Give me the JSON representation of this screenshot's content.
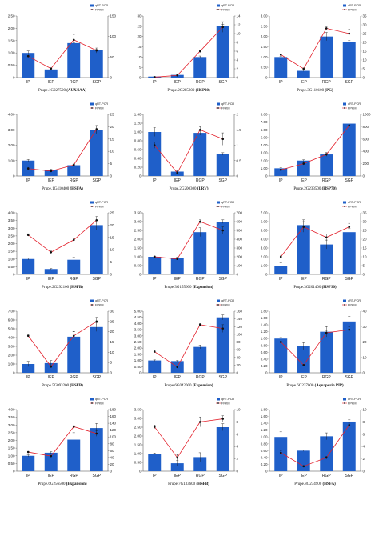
{
  "legend": {
    "bar_label": "qRT-PCR",
    "line_label": "FPKM"
  },
  "colors": {
    "bar": "#1f5fc9",
    "line": "#e3202b",
    "marker": "#111111",
    "axis": "#444444"
  },
  "chart_data": [
    {
      "type": "bar",
      "gene": "Prupe.1G027500",
      "product": "(AUX/IAA)",
      "categories": [
        "IP",
        "IEP",
        "RGP",
        "SGP"
      ],
      "bar_values": [
        1.0,
        0.33,
        1.4,
        1.12
      ],
      "bar_err": [
        0.08,
        0.03,
        0.02,
        0.03
      ],
      "line_values": [
        52,
        22,
        92,
        66
      ],
      "line_err": [
        2,
        1,
        13,
        6
      ],
      "left_ticks": [
        "0",
        "0.50",
        "1.00",
        "1.50",
        "2.00",
        "2.50"
      ],
      "left_max": 2.5,
      "right_ticks": [
        "0",
        "50",
        "100",
        "150"
      ],
      "right_max": 150
    },
    {
      "type": "bar",
      "gene": "Prupe.2G285800",
      "product": "(HSP20)",
      "categories": [
        "IP",
        "IEP",
        "RGP",
        "SGP"
      ],
      "bar_values": [
        0.5,
        1.3,
        10.0,
        25.0
      ],
      "bar_err": [
        0.05,
        0.1,
        0.5,
        1.0
      ],
      "line_values": [
        0.1,
        0.5,
        6.0,
        11.5
      ],
      "line_err": [
        0.05,
        0.05,
        0.3,
        1.2
      ],
      "left_ticks": [
        "0",
        "5",
        "10",
        "15",
        "20",
        "25",
        "30"
      ],
      "left_max": 30,
      "right_ticks": [
        "0",
        "2",
        "4",
        "6",
        "8",
        "10",
        "12",
        "14"
      ],
      "right_max": 14
    },
    {
      "type": "bar",
      "gene": "Prupe.3G110100",
      "product": "(PG)",
      "categories": [
        "IP",
        "IEP",
        "RGP",
        "SGP"
      ],
      "bar_values": [
        1.0,
        0.33,
        2.0,
        1.75
      ],
      "bar_err": [
        0.03,
        0.03,
        0.2,
        0.05
      ],
      "line_values": [
        13,
        5,
        28,
        25
      ],
      "line_err": [
        0.5,
        0.5,
        0.8,
        2.5
      ],
      "left_ticks": [
        "0",
        "0.50",
        "1.00",
        "1.50",
        "2.00",
        "2.50",
        "3.00"
      ],
      "left_max": 3.0,
      "right_ticks": [
        "0",
        "5",
        "10",
        "15",
        "20",
        "25",
        "30",
        "35"
      ],
      "right_max": 35
    },
    {
      "type": "bar",
      "gene": "Prupe.1G410400",
      "product": "(HSFA)",
      "categories": [
        "IP",
        "IEP",
        "RGP",
        "SGP"
      ],
      "bar_values": [
        1.0,
        0.4,
        0.7,
        3.0
      ],
      "bar_err": [
        0.07,
        0.04,
        0.05,
        0.25
      ],
      "line_values": [
        3.0,
        2.0,
        4.5,
        19.0
      ],
      "line_err": [
        0.5,
        0.3,
        0.4,
        1.5
      ],
      "left_ticks": [
        "0",
        "1.00",
        "2.00",
        "3.00",
        "4.00"
      ],
      "left_max": 4.0,
      "right_ticks": [
        "0",
        "5",
        "10",
        "15",
        "20",
        "25"
      ],
      "right_max": 25
    },
    {
      "type": "bar",
      "gene": "Prupe.2G200300",
      "product": "(LRV)",
      "categories": [
        "IP",
        "IEP",
        "RGP",
        "SGP"
      ],
      "bar_values": [
        1.0,
        0.1,
        0.98,
        0.5
      ],
      "bar_err": [
        0.1,
        0.02,
        0.05,
        0.03
      ],
      "line_values": [
        1.0,
        0.1,
        1.5,
        1.2
      ],
      "line_err": [
        0.1,
        0.05,
        0.1,
        0.2
      ],
      "left_ticks": [
        "0",
        "0.20",
        "0.40",
        "0.60",
        "0.80",
        "1.00",
        "1.20",
        "1.40"
      ],
      "left_max": 1.4,
      "right_ticks": [
        "0",
        "0.5",
        "1",
        "1.5",
        "2"
      ],
      "right_max": 2.0
    },
    {
      "type": "bar",
      "gene": "Prupe.2G233500",
      "product": "(HSP70)",
      "categories": [
        "IP",
        "IEP",
        "RGP",
        "SGP"
      ],
      "bar_values": [
        1.0,
        2.0,
        2.8,
        6.8
      ],
      "bar_err": [
        0.1,
        0.1,
        0.15,
        0.2
      ],
      "line_values": [
        100,
        200,
        350,
        820
      ],
      "line_err": [
        10,
        20,
        30,
        60
      ],
      "left_ticks": [
        "0",
        "1.00",
        "2.00",
        "3.00",
        "4.00",
        "5.00",
        "6.00",
        "7.00",
        "8.00"
      ],
      "left_max": 8.0,
      "right_ticks": [
        "0",
        "200",
        "400",
        "600",
        "800",
        "1000"
      ],
      "right_max": 1000
    },
    {
      "type": "bar",
      "gene": "Prupe.2G292100",
      "product": "(HSFB)",
      "categories": [
        "IP",
        "IEP",
        "RGP",
        "SGP"
      ],
      "bar_values": [
        1.0,
        0.35,
        0.95,
        3.2
      ],
      "bar_err": [
        0.05,
        0.03,
        0.15,
        0.3
      ],
      "line_values": [
        16,
        9,
        14,
        22
      ],
      "line_err": [
        0.5,
        0.5,
        0.5,
        1.5
      ],
      "left_ticks": [
        "0",
        "0.50",
        "1.00",
        "1.50",
        "2.00",
        "2.50",
        "3.00",
        "3.50",
        "4.00"
      ],
      "left_max": 4.0,
      "right_ticks": [
        "0",
        "5",
        "10",
        "15",
        "20",
        "25"
      ],
      "right_max": 25
    },
    {
      "type": "bar",
      "gene": "Prupe.3G155600",
      "product": "(Expansion)",
      "categories": [
        "IP",
        "IEP",
        "RGP",
        "SGP"
      ],
      "bar_values": [
        1.0,
        0.95,
        2.4,
        3.0
      ],
      "bar_err": [
        0.03,
        0.03,
        0.25,
        0.1
      ],
      "line_values": [
        200,
        175,
        600,
        500
      ],
      "line_err": [
        10,
        10,
        20,
        40
      ],
      "left_ticks": [
        "0",
        "0.50",
        "1.00",
        "1.50",
        "2.00",
        "2.50",
        "3.00",
        "3.50"
      ],
      "left_max": 3.5,
      "right_ticks": [
        "0",
        "100",
        "200",
        "300",
        "400",
        "500",
        "600",
        "700"
      ],
      "right_max": 700
    },
    {
      "type": "bar",
      "gene": "Prupe.3G201400",
      "product": "(HSP90)",
      "categories": [
        "IP",
        "IEP",
        "RGP",
        "SGP"
      ],
      "bar_values": [
        1.0,
        5.6,
        3.4,
        4.8
      ],
      "bar_err": [
        0.3,
        0.6,
        0.5,
        0.4
      ],
      "line_values": [
        10,
        27,
        21,
        27
      ],
      "line_err": [
        0.5,
        3,
        2,
        2
      ],
      "left_ticks": [
        "0",
        "1.00",
        "2.00",
        "3.00",
        "4.00",
        "5.00",
        "6.00",
        "7.00"
      ],
      "left_max": 7.0,
      "right_ticks": [
        "0",
        "5",
        "10",
        "15",
        "20",
        "25",
        "30",
        "35"
      ],
      "right_max": 35
    },
    {
      "type": "bar",
      "gene": "Prupe.5G093200",
      "product": "(HSFB)",
      "categories": [
        "IP",
        "IEP",
        "RGP",
        "SGP"
      ],
      "bar_values": [
        1.0,
        1.1,
        4.1,
        5.2
      ],
      "bar_err": [
        0.3,
        0.3,
        0.6,
        0.5
      ],
      "line_values": [
        18,
        3,
        18,
        25
      ],
      "line_err": [
        0.5,
        0.5,
        2,
        2
      ],
      "left_ticks": [
        "0",
        "1.00",
        "2.00",
        "3.00",
        "4.00",
        "5.00",
        "6.00",
        "7.00"
      ],
      "left_max": 7.0,
      "right_ticks": [
        "0",
        "5",
        "10",
        "15",
        "20",
        "25",
        "30"
      ],
      "right_max": 30
    },
    {
      "type": "bar",
      "gene": "Prupe.6G042000",
      "product": "(Expansion)",
      "categories": [
        "IP",
        "IEP",
        "RGP",
        "SGP"
      ],
      "bar_values": [
        1.0,
        0.95,
        2.1,
        4.5
      ],
      "bar_err": [
        0.05,
        0.05,
        0.15,
        0.2
      ],
      "line_values": [
        55,
        15,
        125,
        115
      ],
      "line_err": [
        2,
        1,
        3,
        10
      ],
      "left_ticks": [
        "0",
        "0.50",
        "1.00",
        "1.50",
        "2.00",
        "2.50",
        "3.00",
        "3.50",
        "4.00",
        "4.50",
        "5.00"
      ],
      "left_max": 5.0,
      "right_ticks": [
        "0",
        "20",
        "40",
        "60",
        "80",
        "100",
        "120",
        "140",
        "160"
      ],
      "right_max": 160
    },
    {
      "type": "bar",
      "gene": "Prupe.6G237000",
      "product": "(Aquaporin PIP)",
      "categories": [
        "IP",
        "IEP",
        "RGP",
        "SGP"
      ],
      "bar_values": [
        1.0,
        0.78,
        1.2,
        1.5
      ],
      "bar_err": [
        0.03,
        0.1,
        0.15,
        0.15
      ],
      "line_values": [
        20,
        5,
        26,
        28
      ],
      "line_err": [
        0.5,
        0.5,
        1.5,
        2
      ],
      "left_ticks": [
        "0",
        "0.20",
        "0.40",
        "0.60",
        "0.80",
        "1.00",
        "1.20",
        "1.40",
        "1.60",
        "1.80"
      ],
      "left_max": 1.8,
      "right_ticks": [
        "0",
        "10",
        "20",
        "30",
        "40"
      ],
      "right_max": 40
    },
    {
      "type": "bar",
      "gene": "Prupe.6G256500",
      "product": "(Expansion)",
      "categories": [
        "IP",
        "IEP",
        "RGP",
        "SGP"
      ],
      "bar_values": [
        1.0,
        1.2,
        2.05,
        2.8
      ],
      "bar_err": [
        0.07,
        0.07,
        0.45,
        0.3
      ],
      "line_values": [
        56,
        44,
        130,
        110
      ],
      "line_err": [
        2,
        2,
        3,
        8
      ],
      "left_ticks": [
        "0",
        "0.50",
        "1.00",
        "1.50",
        "2.00",
        "2.50",
        "3.00",
        "3.50",
        "4.00"
      ],
      "left_max": 4.0,
      "right_ticks": [
        "0",
        "20",
        "40",
        "60",
        "80",
        "100",
        "120",
        "140",
        "160",
        "180"
      ],
      "right_max": 180
    },
    {
      "type": "bar",
      "gene": "Prupe.7G133600",
      "product": "(HSFB)",
      "categories": [
        "IP",
        "IEP",
        "RGP",
        "SGP"
      ],
      "bar_values": [
        1.0,
        0.45,
        0.8,
        2.5
      ],
      "bar_err": [
        0.03,
        0.15,
        0.25,
        0.2
      ],
      "line_values": [
        7.2,
        2.2,
        8.0,
        8.5
      ],
      "line_err": [
        0.3,
        0.5,
        0.8,
        0.5
      ],
      "left_ticks": [
        "0",
        "0.50",
        "1.00",
        "1.50",
        "2.00",
        "2.50",
        "3.00",
        "3.50"
      ],
      "left_max": 3.5,
      "right_ticks": [
        "0",
        "2",
        "4",
        "6",
        "8",
        "10"
      ],
      "right_max": 10
    },
    {
      "type": "bar",
      "gene": "Prupe.8G234900",
      "product": "(HSFA)",
      "categories": [
        "IP",
        "IEP",
        "RGP",
        "SGP"
      ],
      "bar_values": [
        1.0,
        0.6,
        1.02,
        1.45
      ],
      "bar_err": [
        0.15,
        0.02,
        0.1,
        0.05
      ],
      "line_values": [
        3.0,
        0.8,
        2.2,
        7.5
      ],
      "line_err": [
        0.3,
        0.1,
        0.2,
        0.3
      ],
      "left_ticks": [
        "0",
        "0.20",
        "0.40",
        "0.60",
        "0.80",
        "1.00",
        "1.20",
        "1.40",
        "1.60",
        "1.80"
      ],
      "left_max": 1.8,
      "right_ticks": [
        "0",
        "2",
        "4",
        "6",
        "8",
        "10"
      ],
      "right_max": 10
    }
  ]
}
